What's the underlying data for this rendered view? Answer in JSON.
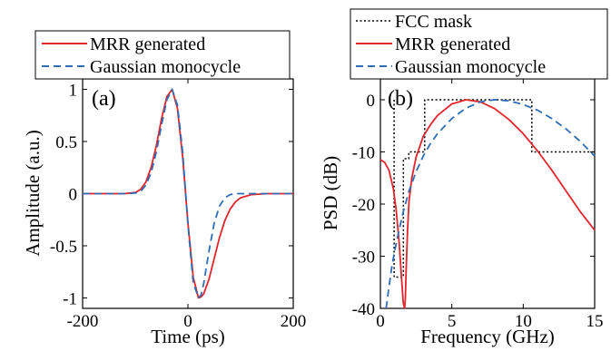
{
  "colors": {
    "mrr": "#e3242b",
    "gaussian": "#2f6db5",
    "fcc": "#000000"
  },
  "chart_data": [
    {
      "type": "line",
      "panel_label": "(a)",
      "xlabel": "Time (ps)",
      "ylabel": "Amplitude (a.u.)",
      "xlim": [
        -200,
        200
      ],
      "ylim": [
        -1.1,
        1.1
      ],
      "xticks": [
        -200,
        0,
        200
      ],
      "yticks": [
        -1,
        -0.5,
        0,
        0.5,
        1
      ],
      "xtick_labels": [
        "-200",
        "0",
        "200"
      ],
      "ytick_labels": [
        "-1",
        "-0.5",
        "0",
        "0.5",
        "1"
      ],
      "grid": false,
      "legend": {
        "placement": "top",
        "entries": [
          "MRR generated",
          "Gaussian monocycle"
        ]
      },
      "series": [
        {
          "name": "MRR generated",
          "color": "#e3242b",
          "style": "solid",
          "x": [
            -200,
            -150,
            -120,
            -100,
            -90,
            -80,
            -70,
            -60,
            -50,
            -40,
            -30,
            -20,
            -10,
            0,
            10,
            20,
            25,
            30,
            40,
            50,
            60,
            70,
            80,
            90,
            100,
            120,
            150,
            200
          ],
          "y": [
            0,
            0,
            0,
            0.01,
            0.04,
            0.11,
            0.25,
            0.46,
            0.72,
            0.93,
            1.0,
            0.82,
            0.35,
            -0.28,
            -0.8,
            -1.0,
            -0.99,
            -0.96,
            -0.82,
            -0.62,
            -0.42,
            -0.26,
            -0.15,
            -0.08,
            -0.04,
            -0.01,
            0,
            0
          ]
        },
        {
          "name": "Gaussian monocycle",
          "color": "#2f6db5",
          "style": "dashed",
          "x": [
            -200,
            -150,
            -120,
            -100,
            -90,
            -80,
            -70,
            -60,
            -50,
            -40,
            -30,
            -20,
            -10,
            0,
            10,
            20,
            25,
            30,
            40,
            50,
            60,
            70,
            80,
            90,
            100,
            120,
            150,
            200
          ],
          "y": [
            0,
            0,
            0,
            0.005,
            0.02,
            0.08,
            0.2,
            0.4,
            0.66,
            0.9,
            1.0,
            0.85,
            0.4,
            -0.3,
            -0.85,
            -1.0,
            -0.97,
            -0.86,
            -0.55,
            -0.28,
            -0.12,
            -0.04,
            -0.01,
            0,
            0,
            0,
            0,
            0
          ]
        }
      ]
    },
    {
      "type": "line",
      "panel_label": "(b)",
      "xlabel": "Frequency (GHz)",
      "ylabel": "PSD (dB)",
      "xlim": [
        0,
        15
      ],
      "ylim": [
        -40,
        4
      ],
      "xticks": [
        0,
        5,
        10,
        15
      ],
      "yticks": [
        -40,
        -30,
        -20,
        -10,
        0
      ],
      "xtick_labels": [
        "0",
        "5",
        "10",
        "15"
      ],
      "ytick_labels": [
        "-40",
        "-30",
        "-20",
        "-10",
        "0"
      ],
      "grid": false,
      "legend": {
        "placement": "top",
        "entries": [
          "FCC mask",
          "MRR generated",
          "Gaussian monocycle"
        ]
      },
      "series": [
        {
          "name": "FCC mask",
          "color": "#000000",
          "style": "dotted",
          "x": [
            0.96,
            0.96,
            1.61,
            1.61,
            1.99,
            1.99,
            3.1,
            3.1,
            10.6,
            10.6,
            15
          ],
          "y": [
            0,
            -34,
            -34,
            -11.3,
            -11.3,
            -10,
            -10,
            0,
            0,
            -10,
            -10
          ]
        },
        {
          "name": "MRR generated",
          "color": "#e3242b",
          "style": "solid",
          "x": [
            0,
            0.3,
            0.6,
            0.9,
            1.1,
            1.3,
            1.5,
            1.6,
            1.7,
            1.75,
            1.8,
            1.9,
            2.0,
            2.2,
            2.5,
            3,
            3.5,
            4,
            5,
            6,
            7,
            8,
            9,
            10,
            11,
            12,
            13,
            14,
            15
          ],
          "y": [
            -11.5,
            -12,
            -13.5,
            -17,
            -21,
            -27,
            -35,
            -39,
            -40,
            -38,
            -33,
            -25,
            -19.5,
            -15,
            -11,
            -7,
            -4.8,
            -3,
            -0.8,
            0,
            -0.4,
            -1.7,
            -3.8,
            -6.5,
            -9.8,
            -13.5,
            -17.5,
            -21.5,
            -25
          ]
        },
        {
          "name": "Gaussian monocycle",
          "color": "#2f6db5",
          "style": "dashed",
          "x": [
            0.4,
            0.6,
            0.8,
            1.0,
            1.3,
            1.6,
            2,
            2.5,
            3,
            3.5,
            4,
            5,
            6,
            7,
            8,
            9,
            10,
            11,
            12,
            13,
            14,
            15
          ],
          "y": [
            -40,
            -36,
            -32,
            -29,
            -25,
            -21.5,
            -17.5,
            -13.8,
            -10.8,
            -8.4,
            -6.5,
            -3.6,
            -1.6,
            -0.4,
            0,
            -0.2,
            -0.9,
            -2,
            -3.6,
            -5.6,
            -8,
            -10.8
          ]
        }
      ]
    }
  ]
}
